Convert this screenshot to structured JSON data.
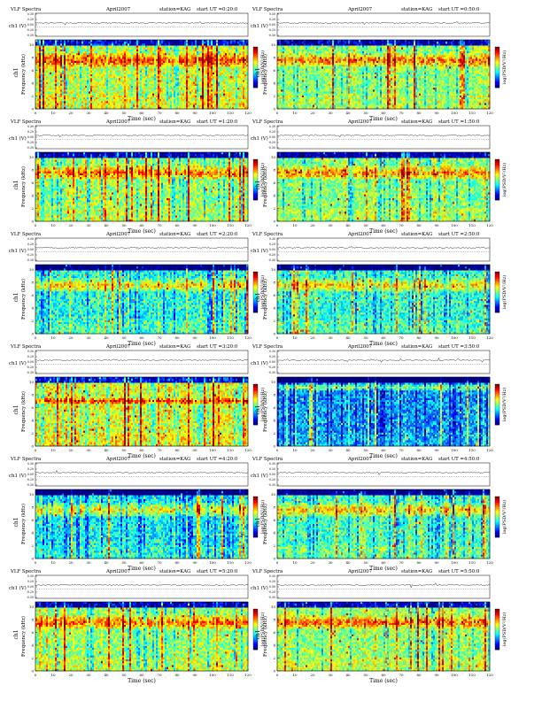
{
  "page": {
    "spectrum_title": "VLF Spectra",
    "date": "April2007",
    "station": "station=KAG",
    "start_prefix": "start  UT =",
    "amp_ylabel": "ch1 (V)",
    "spec_ylabel_ch": "ch1",
    "spec_ylabel": "Frequency  (kHz)",
    "xlabel": "Time  (sec)",
    "colorbar_label": "log(PSD/V²/Hz)",
    "x_ticks": [
      "0",
      "10",
      "20",
      "30",
      "40",
      "50",
      "60",
      "70",
      "80",
      "90",
      "100",
      "110",
      "120"
    ],
    "freq_ticks": [
      "0",
      "2",
      "4",
      "6",
      "8",
      "10"
    ],
    "amp_ticks": [
      "0.30",
      "0.20",
      "0.00",
      "-0.20",
      "-0.30"
    ]
  },
  "chart_data": [
    {
      "type": "heatmap",
      "start_ut": "0:20:0",
      "x_range": [
        0,
        120
      ],
      "y_range_khz": [
        0,
        10
      ],
      "amp_range_v": [
        -0.3,
        0.3
      ],
      "dominant_band_khz": [
        6,
        8
      ],
      "overall_level": 0.55
    },
    {
      "type": "heatmap",
      "start_ut": "0:50:0",
      "x_range": [
        0,
        120
      ],
      "y_range_khz": [
        0,
        10
      ],
      "amp_range_v": [
        -0.3,
        0.3
      ],
      "dominant_band_khz": [
        6,
        8
      ],
      "overall_level": 0.5
    },
    {
      "type": "heatmap",
      "start_ut": "1:20:0",
      "x_range": [
        0,
        120
      ],
      "y_range_khz": [
        0,
        10
      ],
      "amp_range_v": [
        -0.3,
        0.3
      ],
      "dominant_band_khz": [
        6,
        8
      ],
      "overall_level": 0.5
    },
    {
      "type": "heatmap",
      "start_ut": "1:50:0",
      "x_range": [
        0,
        120
      ],
      "y_range_khz": [
        0,
        10
      ],
      "amp_range_v": [
        -0.3,
        0.3
      ],
      "dominant_band_khz": [
        6,
        8
      ],
      "overall_level": 0.48
    },
    {
      "type": "heatmap",
      "start_ut": "2:20:0",
      "x_range": [
        0,
        120
      ],
      "y_range_khz": [
        0,
        10
      ],
      "amp_range_v": [
        -0.3,
        0.3
      ],
      "dominant_band_khz": [
        6,
        8
      ],
      "overall_level": 0.38
    },
    {
      "type": "heatmap",
      "start_ut": "2:50:0",
      "x_range": [
        0,
        120
      ],
      "y_range_khz": [
        0,
        10
      ],
      "amp_range_v": [
        -0.3,
        0.3
      ],
      "dominant_band_khz": [
        6,
        8
      ],
      "overall_level": 0.4
    },
    {
      "type": "heatmap",
      "start_ut": "3:20:0",
      "x_range": [
        0,
        120
      ],
      "y_range_khz": [
        0,
        10
      ],
      "amp_range_v": [
        -0.3,
        0.3
      ],
      "dominant_band_khz": [
        6,
        7
      ],
      "overall_level": 0.58
    },
    {
      "type": "heatmap",
      "start_ut": "3:50:0",
      "x_range": [
        0,
        120
      ],
      "y_range_khz": [
        0,
        10
      ],
      "amp_range_v": [
        -0.3,
        0.3
      ],
      "dominant_band_khz": [
        8,
        9
      ],
      "overall_level": 0.25
    },
    {
      "type": "heatmap",
      "start_ut": "4:20:0",
      "x_range": [
        0,
        120
      ],
      "y_range_khz": [
        0,
        10
      ],
      "amp_range_v": [
        -0.3,
        0.3
      ],
      "dominant_band_khz": [
        6,
        8
      ],
      "overall_level": 0.36
    },
    {
      "type": "heatmap",
      "start_ut": "4:50:0",
      "x_range": [
        0,
        120
      ],
      "y_range_khz": [
        0,
        10
      ],
      "amp_range_v": [
        -0.3,
        0.3
      ],
      "dominant_band_khz": [
        6,
        8
      ],
      "overall_level": 0.42
    },
    {
      "type": "heatmap",
      "start_ut": "5:20:0",
      "x_range": [
        0,
        120
      ],
      "y_range_khz": [
        0,
        10
      ],
      "amp_range_v": [
        -0.3,
        0.3
      ],
      "dominant_band_khz": [
        6,
        8
      ],
      "overall_level": 0.5
    },
    {
      "type": "heatmap",
      "start_ut": "5:50:0",
      "x_range": [
        0,
        120
      ],
      "y_range_khz": [
        0,
        10
      ],
      "amp_range_v": [
        -0.3,
        0.3
      ],
      "dominant_band_khz": [
        6,
        8
      ],
      "overall_level": 0.5
    }
  ],
  "colors": {
    "colormap": [
      "#00007f",
      "#0000ff",
      "#0080ff",
      "#00ffff",
      "#80ff80",
      "#ffff00",
      "#ff8000",
      "#ff0000",
      "#7f0000"
    ]
  }
}
